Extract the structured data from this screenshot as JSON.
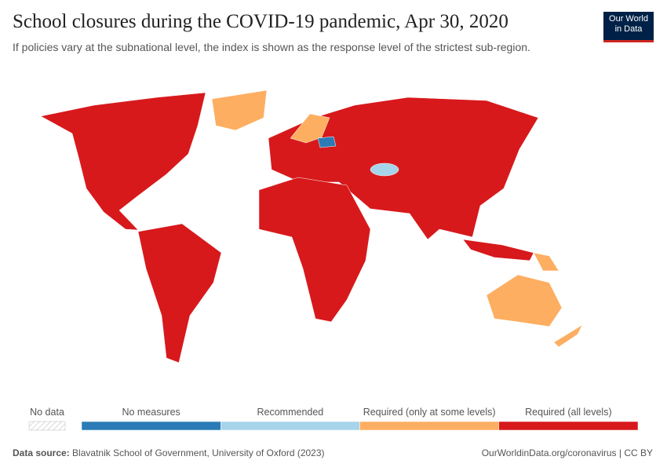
{
  "header": {
    "title": "School closures during the COVID-19 pandemic, Apr 30, 2020",
    "subtitle": "If policies vary at the subnational level, the index is shown as the response level of the strictest sub-region.",
    "logo": [
      "Our World",
      "in Data"
    ]
  },
  "legend": {
    "no_data": "No data",
    "items": [
      {
        "label": "No measures",
        "color": "#2c7bb6"
      },
      {
        "label": "Recommended",
        "color": "#a6d4ea"
      },
      {
        "label": "Required (only at some levels)",
        "color": "#fdae61"
      },
      {
        "label": "Required (all levels)",
        "color": "#d7191c"
      }
    ]
  },
  "footer": {
    "source_label": "Data source:",
    "source": "Blavatnik School of Government, University of Oxford (2023)",
    "url": "OurWorldinData.org/coronavirus | CC BY"
  }
}
